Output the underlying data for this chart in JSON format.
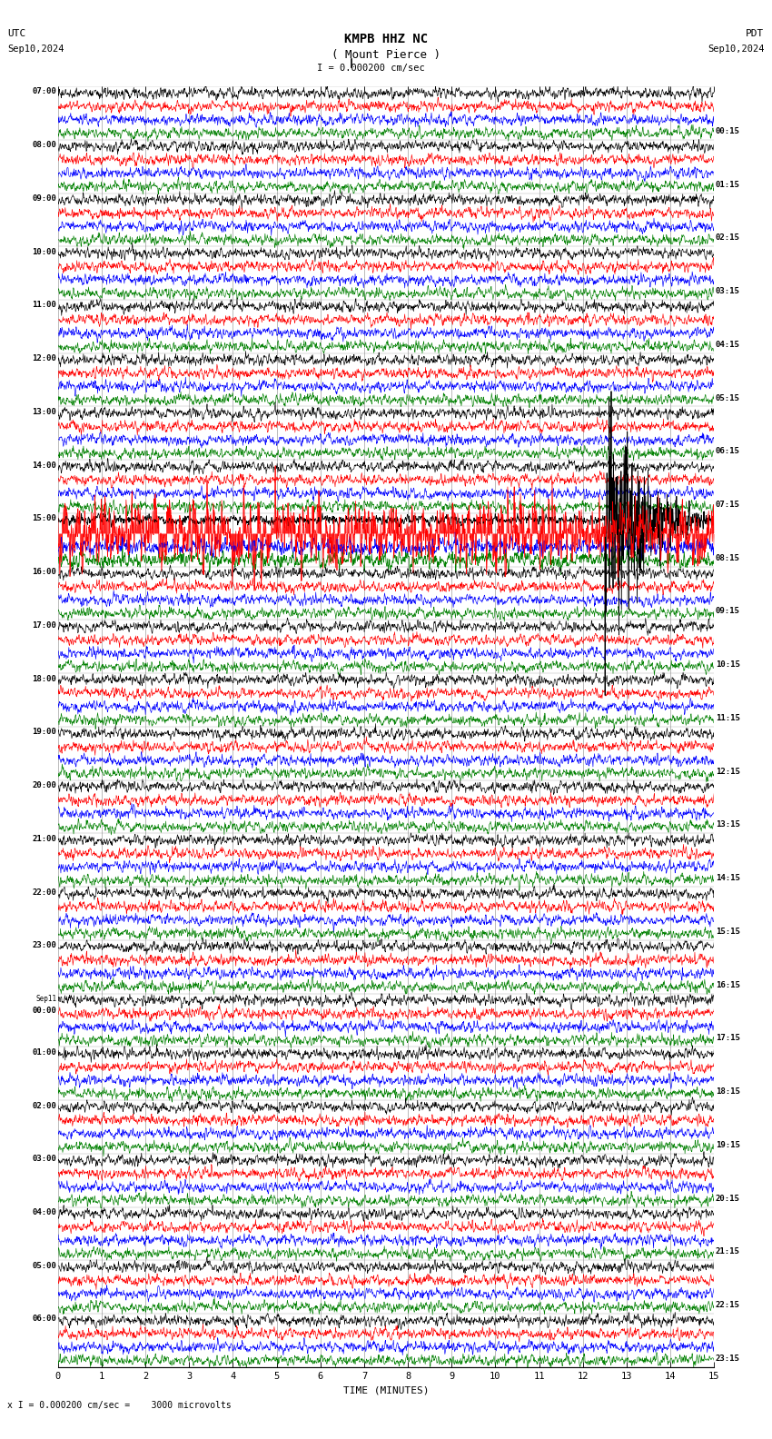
{
  "title_line1": "KMPB HHZ NC",
  "title_line2": "( Mount Pierce )",
  "scale_text": "I = 0.000200 cm/sec",
  "left_top_label": "UTC",
  "left_date": "Sep10,2024",
  "right_top_label": "PDT",
  "right_date": "Sep10,2024",
  "bottom_label": "TIME (MINUTES)",
  "bottom_note": "x I = 0.000200 cm/sec =    3000 microvolts",
  "utc_times": [
    "07:00",
    "08:00",
    "09:00",
    "10:00",
    "11:00",
    "12:00",
    "13:00",
    "14:00",
    "15:00",
    "16:00",
    "17:00",
    "18:00",
    "19:00",
    "20:00",
    "21:00",
    "22:00",
    "23:00",
    "Sep11",
    "01:00",
    "02:00",
    "03:00",
    "04:00",
    "05:00",
    "06:00"
  ],
  "utc_times_sub": [
    "",
    "",
    "",
    "",
    "",
    "",
    "",
    "",
    "",
    "",
    "",
    "",
    "",
    "",
    "",
    "",
    "",
    "00:00",
    "",
    "",
    "",
    "",
    "",
    ""
  ],
  "pdt_times": [
    "00:15",
    "01:15",
    "02:15",
    "03:15",
    "04:15",
    "05:15",
    "06:15",
    "07:15",
    "08:15",
    "09:15",
    "10:15",
    "11:15",
    "12:15",
    "13:15",
    "14:15",
    "15:15",
    "16:15",
    "17:15",
    "18:15",
    "19:15",
    "20:15",
    "21:15",
    "22:15",
    "23:15"
  ],
  "n_rows": 24,
  "n_traces_per_row": 4,
  "trace_colors": [
    "black",
    "red",
    "blue",
    "green"
  ],
  "bg_color": "white",
  "fig_width": 8.5,
  "fig_height": 15.84,
  "n_points": 1800,
  "x_ticks": [
    0,
    1,
    2,
    3,
    4,
    5,
    6,
    7,
    8,
    9,
    10,
    11,
    12,
    13,
    14,
    15
  ],
  "earthquake_row": 8,
  "quake_row_red_filled": true,
  "quake_col_black_thick": true
}
